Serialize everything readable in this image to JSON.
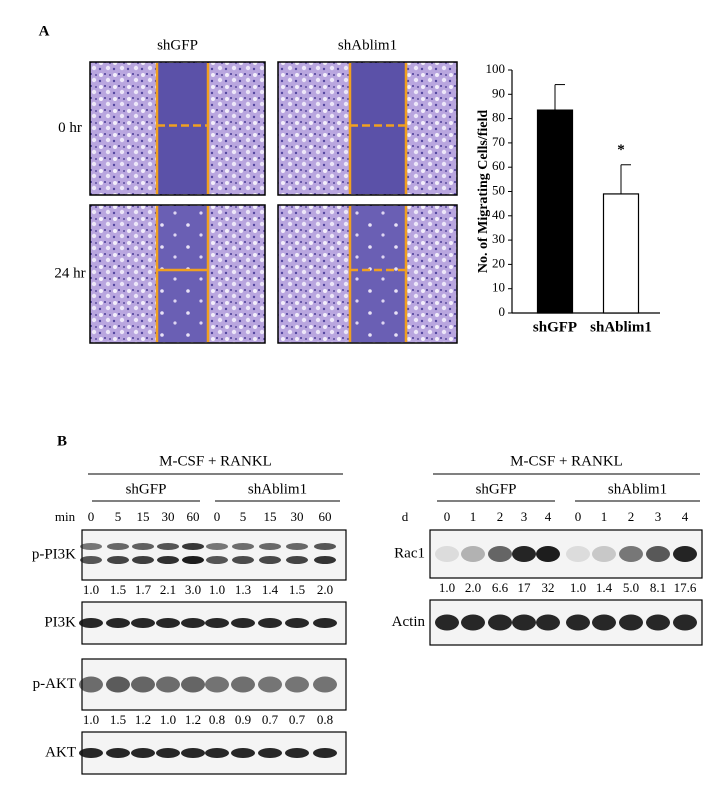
{
  "panel_a": {
    "label": "A",
    "columns": [
      "shGFP",
      "shAblim1"
    ],
    "rows": [
      "0 hr",
      "24 hr"
    ],
    "chart_data": {
      "type": "bar",
      "y_label": "No. of Migrating Cells/field",
      "categories": [
        "shGFP",
        "shAblim1"
      ],
      "values": [
        83.5,
        49
      ],
      "errors": [
        10.5,
        12
      ],
      "colors": [
        "#000000",
        "#ffffff"
      ],
      "ylim": [
        0,
        100
      ],
      "yticks": [
        0,
        10,
        20,
        30,
        40,
        50,
        60,
        70,
        80,
        90,
        100
      ],
      "annotations": [
        "*"
      ]
    }
  },
  "panel_b": {
    "label": "B",
    "left": {
      "treatment": "M-CSF + RANKL",
      "groups": [
        "shGFP",
        "shAblim1"
      ],
      "time_label": "min",
      "times": [
        0,
        5,
        15,
        30,
        60,
        0,
        5,
        15,
        30,
        60
      ],
      "blots": [
        {
          "name": "p-PI3K",
          "quant": [
            "1.0",
            "1.5",
            "1.7",
            "2.1",
            "3.0",
            "1.0",
            "1.3",
            "1.4",
            "1.5",
            "2.0"
          ]
        },
        {
          "name": "PI3K"
        },
        {
          "name": "p-AKT",
          "quant": [
            "1.0",
            "1.5",
            "1.2",
            "1.0",
            "1.2",
            "0.8",
            "0.9",
            "0.7",
            "0.7",
            "0.8"
          ]
        },
        {
          "name": "AKT"
        }
      ]
    },
    "right": {
      "treatment": "M-CSF + RANKL",
      "groups": [
        "shGFP",
        "shAblim1"
      ],
      "time_label": "d",
      "times": [
        0,
        1,
        2,
        3,
        4,
        0,
        1,
        2,
        3,
        4
      ],
      "blots": [
        {
          "name": "Rac1",
          "quant": [
            "1.0",
            "2.0",
            "6.6",
            "17",
            "32",
            "1.0",
            "1.4",
            "5.0",
            "8.1",
            "17.6"
          ]
        },
        {
          "name": "Actin"
        }
      ]
    }
  }
}
